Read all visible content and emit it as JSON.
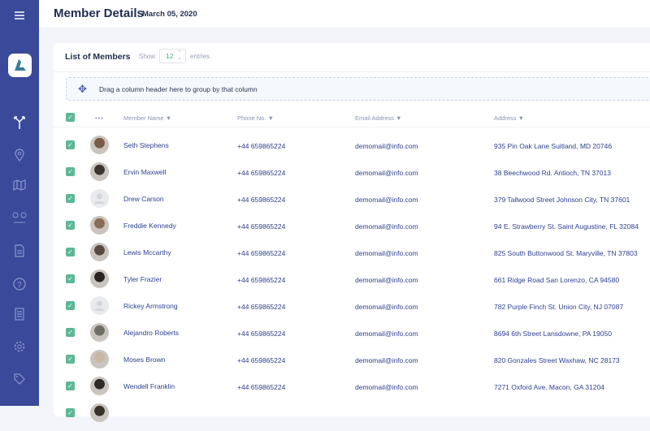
{
  "header": {
    "title": "Member Details",
    "date": "March 05, 2020"
  },
  "sidebar": {
    "items": [
      "menu-icon",
      "logo",
      "fork-icon",
      "location-pin-icon",
      "map-icon",
      "route-icon",
      "document-icon",
      "help-icon",
      "book-icon",
      "settings-icon",
      "tag-icon"
    ]
  },
  "card": {
    "title": "List of Members",
    "show_label": "Show",
    "entries_count": "12",
    "entries_label": "entries",
    "drop_text": "Drag a column header here to group by that column"
  },
  "columns": {
    "more": "•••",
    "name": "Member Name",
    "phone": "Phone No.",
    "email": "Email Address",
    "address": "Address"
  },
  "colors": {
    "sidebar": "#3a4999",
    "check": "#5cb895",
    "link": "#2d3f8f"
  },
  "rows": [
    {
      "name": "Seth Stephens",
      "phone": "+44 659865224",
      "email": "demomail@info.com",
      "address": "935 Pin Oak Lane Suitland, MD 20746",
      "avatar": "photo"
    },
    {
      "name": "Ervin Maxwell",
      "phone": "+44 659865224",
      "email": "demomail@info.com",
      "address": "38 Beechwood Rd. Antioch, TN 37013",
      "avatar": "photo"
    },
    {
      "name": "Drew Carson",
      "phone": "+44 659865224",
      "email": "demomail@info.com",
      "address": "379 Tallwood Street Johnson City, TN 37601",
      "avatar": "placeholder"
    },
    {
      "name": "Freddie Kennedy",
      "phone": "+44 659865224",
      "email": "demomail@info.com",
      "address": "94 E. Strawberry St. Saint Augustine, FL 32084",
      "avatar": "photo"
    },
    {
      "name": "Lewis Mccarthy",
      "phone": "+44 659865224",
      "email": "demomail@info.com",
      "address": "825 South Buttonwood St. Maryville, TN 37803",
      "avatar": "photo"
    },
    {
      "name": "Tyler Frazier",
      "phone": "+44 659865224",
      "email": "demomail@info.com",
      "address": "661 Ridge Road San Lorenzo, CA 94580",
      "avatar": "photo"
    },
    {
      "name": "Rickey Armstrong",
      "phone": "+44 659865224",
      "email": "demomail@info.com",
      "address": "782 Purple Finch St. Union City, NJ 07087",
      "avatar": "placeholder"
    },
    {
      "name": "Alejandro Roberts",
      "phone": "+44 659865224",
      "email": "demomail@info.com",
      "address": "8694 6th Street Lansdowne, PA 19050",
      "avatar": "photo"
    },
    {
      "name": "Moses Brown",
      "phone": "+44 659865224",
      "email": "demomail@info.com",
      "address": "820 Gonzales Street Waxhaw, NC 28173",
      "avatar": "photo"
    },
    {
      "name": "Wendell Franklin",
      "phone": "+44 659865224",
      "email": "demomail@info.com",
      "address": "7271 Oxford Ave. Macon, GA 31204",
      "avatar": "photo"
    }
  ]
}
